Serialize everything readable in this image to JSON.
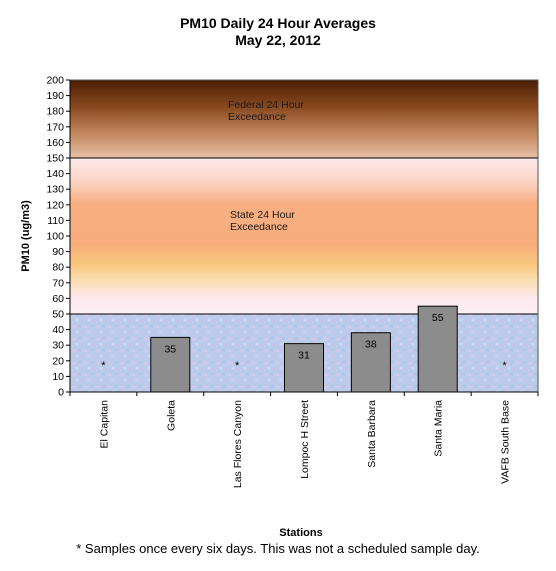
{
  "chart_data": {
    "type": "bar",
    "title": "PM10 Daily 24 Hour Averages",
    "subtitle": "May 22, 2012",
    "xlabel": "Stations",
    "ylabel": "PM10 (ug/m3)",
    "ylim": [
      0,
      200
    ],
    "ytick_step": 10,
    "categories": [
      "El Capitan",
      "Goleta",
      "Las Flores Canyon",
      "Lompoc H Street",
      "Santa Barbara",
      "Santa Maria",
      "VAFB South Base"
    ],
    "values": [
      null,
      35,
      null,
      31,
      38,
      55,
      null
    ],
    "value_labels": [
      "*",
      "35",
      "*",
      "31",
      "38",
      "55",
      "*"
    ],
    "bar_color": "#8c8c8c",
    "bands": [
      {
        "from": 0,
        "to": 50,
        "color": "#b8c8ec"
      },
      {
        "from": 50,
        "to": 150,
        "color": "#f7ad7c",
        "label": [
          "State 24 Hour",
          "Exceedance"
        ]
      },
      {
        "from": 150,
        "to": 200,
        "color": "#5e2a08",
        "label": [
          "Federal 24 Hour",
          "Exceedance"
        ]
      }
    ],
    "thresholds": [
      50,
      150
    ],
    "legend": "none",
    "grid": false
  },
  "footnote": "* Samples once every six days.  This was not a scheduled sample day."
}
